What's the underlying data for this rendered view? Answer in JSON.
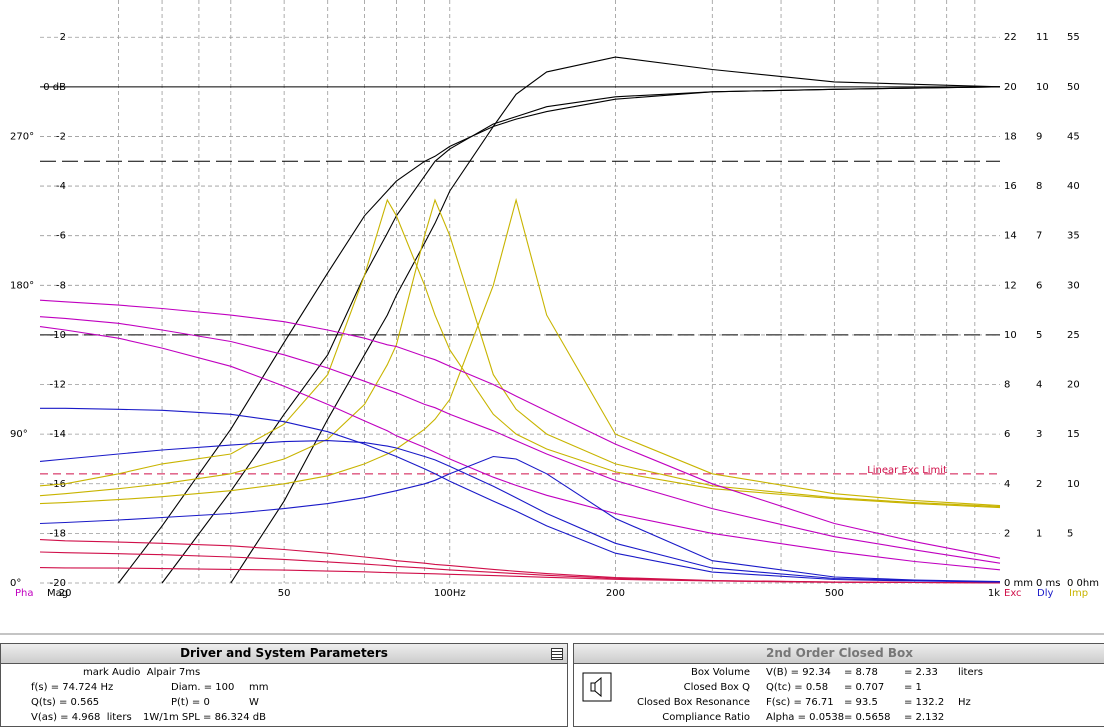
{
  "chart_data": {
    "type": "line",
    "log_x": true,
    "grid": true,
    "x": [
      18,
      20,
      25,
      30,
      40,
      50,
      60,
      70,
      77,
      80,
      90,
      94,
      100,
      120,
      132,
      150,
      200,
      300,
      500,
      700,
      1000
    ],
    "xlim": [
      18,
      1000
    ],
    "xticks": [
      20,
      50,
      {
        "value": 100,
        "label": "100Hz"
      },
      200,
      500,
      {
        "value": 1000,
        "label": "1k"
      }
    ],
    "xgrid": [
      25,
      30,
      35,
      40,
      50,
      60,
      70,
      80,
      90,
      100,
      200,
      300,
      400,
      500,
      600,
      700,
      800,
      900
    ],
    "x_label": "Mag",
    "ylim": [
      -20,
      3.5
    ],
    "yticks": [
      2,
      {
        "value": 0,
        "label": "0 dB"
      },
      -2,
      -4,
      -6,
      -8,
      -10,
      -12,
      -14,
      -16,
      -18,
      -20
    ],
    "phase_label": "Pha",
    "phase_lim": [
      0,
      352.5
    ],
    "phase_ticks": [
      {
        "value": 0,
        "label": "0°"
      },
      {
        "value": 90,
        "label": "90°"
      },
      {
        "value": 180,
        "label": "180°"
      },
      {
        "value": 270,
        "label": "270°"
      }
    ],
    "y2_label": "Exc",
    "y2lim": [
      0,
      23.5
    ],
    "y2ticks": [
      {
        "value": 0,
        "label": "0 mm"
      },
      2,
      4,
      6,
      8,
      10,
      12,
      14,
      16,
      18,
      20,
      22
    ],
    "y3_label": "Dly",
    "y3lim": [
      0,
      11.75
    ],
    "y3ticks": [
      {
        "value": 0,
        "label": "0 ms"
      },
      1,
      2,
      3,
      4,
      5,
      6,
      7,
      8,
      9,
      10,
      11
    ],
    "y4_label": "Imp",
    "y4lim": [
      0,
      58.75
    ],
    "y4ticks": [
      {
        "value": 0,
        "label": "0 0hm"
      },
      5,
      10,
      15,
      20,
      25,
      30,
      35,
      40,
      45,
      50,
      55
    ],
    "reference_lines": [
      -3,
      -10
    ],
    "exc_limit": {
      "value": 4.4,
      "label": "Linear Exc Limit",
      "color": "#d0104a"
    },
    "series": [
      {
        "axis": "y",
        "color": "#000000",
        "values": [
          null,
          null,
          -20,
          -17.7,
          -13.8,
          -10.3,
          -7.5,
          -5.2,
          -4.2,
          -3.8,
          -3.0,
          -2.8,
          -2.4,
          -1.6,
          -1.3,
          -1.0,
          -0.5,
          -0.2,
          -0.1,
          -0.05,
          0
        ]
      },
      {
        "axis": "y",
        "color": "#000000",
        "values": [
          null,
          null,
          null,
          -20,
          -16.3,
          -13.2,
          -10.8,
          -7.6,
          -5.9,
          -5.2,
          -3.6,
          -3.0,
          -2.5,
          -1.5,
          -1.2,
          -0.8,
          -0.4,
          -0.2,
          -0.1,
          -0.05,
          0
        ]
      },
      {
        "axis": "y",
        "color": "#000000",
        "values": [
          null,
          null,
          null,
          null,
          -20,
          -16.7,
          -13.4,
          -10.8,
          -9.2,
          -8.4,
          -6.3,
          -5.5,
          -4.2,
          -1.6,
          -0.3,
          0.6,
          1.2,
          0.7,
          0.2,
          0.1,
          0
        ]
      },
      {
        "axis": "y4",
        "color": "#c8b400",
        "values": [
          9.8,
          10,
          11,
          12,
          13,
          16,
          21,
          31,
          38.6,
          37,
          30,
          27,
          23.5,
          17,
          15,
          13.5,
          11.2,
          9.5,
          8.5,
          8,
          7.6
        ]
      },
      {
        "axis": "y4",
        "color": "#c8b400",
        "values": [
          8.8,
          9,
          9.5,
          10,
          11,
          12.5,
          14.5,
          18,
          22,
          24,
          35,
          38.6,
          35,
          21,
          17.5,
          15,
          12,
          9.8,
          8.6,
          8.1,
          7.7
        ]
      },
      {
        "axis": "y4",
        "color": "#c8b400",
        "values": [
          8,
          8.1,
          8.4,
          8.7,
          9.3,
          10,
          10.8,
          12,
          13,
          13.5,
          15.5,
          16.5,
          18.5,
          30,
          38.6,
          27,
          15,
          11,
          9,
          8.3,
          7.8
        ]
      },
      {
        "axis": "phase",
        "color": "#c000c0",
        "values": [
          171,
          170,
          168,
          166,
          162,
          158,
          153,
          148,
          144,
          143,
          137,
          135,
          131,
          120,
          113,
          104,
          84,
          60,
          36,
          25,
          15
        ]
      },
      {
        "axis": "phase",
        "color": "#c000c0",
        "values": [
          161,
          160,
          157,
          153,
          146,
          138,
          130,
          122,
          117,
          115,
          108,
          106,
          102,
          92,
          86,
          78,
          62,
          45,
          28,
          20,
          12
        ]
      },
      {
        "axis": "phase",
        "color": "#c000c0",
        "values": [
          155,
          153,
          148,
          142,
          131,
          119,
          108,
          98,
          92,
          89,
          82,
          79,
          75,
          64,
          59,
          53,
          42,
          30,
          19,
          13,
          8
        ]
      },
      {
        "axis": "y2",
        "color": "#d0104a",
        "values": [
          1.75,
          1.7,
          1.65,
          1.6,
          1.5,
          1.35,
          1.2,
          1.05,
          0.95,
          0.9,
          0.8,
          0.75,
          0.7,
          0.55,
          0.47,
          0.38,
          0.22,
          0.1,
          0.04,
          0.02,
          0.01
        ]
      },
      {
        "axis": "y2",
        "color": "#d0104a",
        "values": [
          1.25,
          1.22,
          1.18,
          1.14,
          1.05,
          0.95,
          0.85,
          0.76,
          0.7,
          0.67,
          0.6,
          0.57,
          0.53,
          0.43,
          0.38,
          0.31,
          0.19,
          0.09,
          0.04,
          0.02,
          0.01
        ]
      },
      {
        "axis": "y2",
        "color": "#d0104a",
        "values": [
          0.62,
          0.61,
          0.6,
          0.58,
          0.55,
          0.52,
          0.48,
          0.45,
          0.42,
          0.41,
          0.38,
          0.37,
          0.35,
          0.3,
          0.27,
          0.23,
          0.15,
          0.08,
          0.03,
          0.02,
          0.01
        ]
      },
      {
        "axis": "y3",
        "color": "#1a1ac8",
        "values": [
          3.52,
          3.52,
          3.5,
          3.48,
          3.4,
          3.25,
          3.05,
          2.8,
          2.62,
          2.55,
          2.3,
          2.2,
          2.05,
          1.65,
          1.45,
          1.15,
          0.6,
          0.22,
          0.07,
          0.04,
          0.02
        ]
      },
      {
        "axis": "y3",
        "color": "#1a1ac8",
        "values": [
          2.45,
          2.5,
          2.6,
          2.68,
          2.78,
          2.85,
          2.87,
          2.83,
          2.76,
          2.72,
          2.55,
          2.48,
          2.35,
          1.95,
          1.72,
          1.4,
          0.8,
          0.3,
          0.09,
          0.05,
          0.02
        ]
      },
      {
        "axis": "y3",
        "color": "#1a1ac8",
        "values": [
          1.2,
          1.22,
          1.27,
          1.32,
          1.4,
          1.5,
          1.6,
          1.72,
          1.82,
          1.86,
          2.0,
          2.07,
          2.2,
          2.55,
          2.5,
          2.2,
          1.3,
          0.45,
          0.12,
          0.06,
          0.03
        ]
      }
    ]
  },
  "driver_panel": {
    "title": "Driver and System Parameters",
    "driver": "mark Audio  Alpair 7ms",
    "rows": [
      [
        "f(s) = 74.724 Hz",
        "Diam. = 100",
        "mm"
      ],
      [
        "Q(ts) = 0.565",
        "P(t) = 0",
        "W"
      ],
      [
        "V(as) = 4.968  liters",
        "1W/1m SPL = 86.324 dB"
      ]
    ]
  },
  "box_panel": {
    "title": "2nd Order Closed Box",
    "rows": [
      [
        "Box Volume",
        "V(B) = 92.34",
        "= 8.78",
        "= 2.33",
        "liters"
      ],
      [
        "Closed Box Q",
        "Q(tc) = 0.58",
        "= 0.707",
        "= 1"
      ],
      [
        "Closed Box Resonance",
        "F(sc) = 76.71",
        "= 93.5",
        "= 132.2",
        "Hz"
      ],
      [
        "Compliance Ratio",
        "Alpha = 0.0538",
        "= 0.5658",
        "= 2.132"
      ]
    ]
  }
}
